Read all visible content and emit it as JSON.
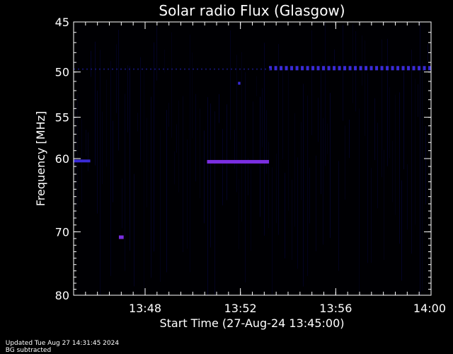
{
  "chart_data": {
    "type": "heatmap",
    "title": "Solar radio Flux (Glasgow)",
    "ylabel": "Frequency [MHz]",
    "xlabel": "Start Time (27-Aug-24 13:45:00)",
    "x_range": [
      "13:45:00",
      "14:00:00"
    ],
    "xlim_minutes": [
      0,
      15
    ],
    "ylim": [
      45,
      80
    ],
    "y_ticks": [
      45,
      50,
      55,
      60,
      70,
      80
    ],
    "x_ticks": [
      {
        "label": "13:48",
        "minute": 3
      },
      {
        "label": "13:52",
        "minute": 7
      },
      {
        "label": "13:56",
        "minute": 11
      },
      {
        "label": "14:00",
        "minute": 15
      }
    ],
    "colors": {
      "background": "#000000",
      "faint": "#0a0a46",
      "signal": "#3a2bd8",
      "strong": "#7a2ee0"
    },
    "features": [
      {
        "name": "continuous band",
        "freq_mhz": 49.6,
        "start_min": 8.2,
        "end_min": 15.0,
        "intensity": "medium"
      },
      {
        "name": "faint band",
        "freq_mhz": 49.7,
        "start_min": 0.0,
        "end_min": 8.2,
        "intensity": "faint"
      },
      {
        "name": "burst",
        "freq_mhz": 60.4,
        "start_min": 5.6,
        "end_min": 8.2,
        "intensity": "strong"
      },
      {
        "name": "burst",
        "freq_mhz": 60.3,
        "start_min": 0.0,
        "end_min": 0.7,
        "intensity": "medium"
      },
      {
        "name": "spot",
        "freq_mhz": 70.8,
        "start_min": 1.9,
        "end_min": 2.1,
        "intensity": "strong"
      },
      {
        "name": "spot",
        "freq_mhz": 51.2,
        "start_min": 6.9,
        "end_min": 7.0,
        "intensity": "medium"
      }
    ]
  },
  "footer": {
    "updated": "Updated Tue Aug 27 14:31:45 2024",
    "bg": "BG subtracted"
  }
}
